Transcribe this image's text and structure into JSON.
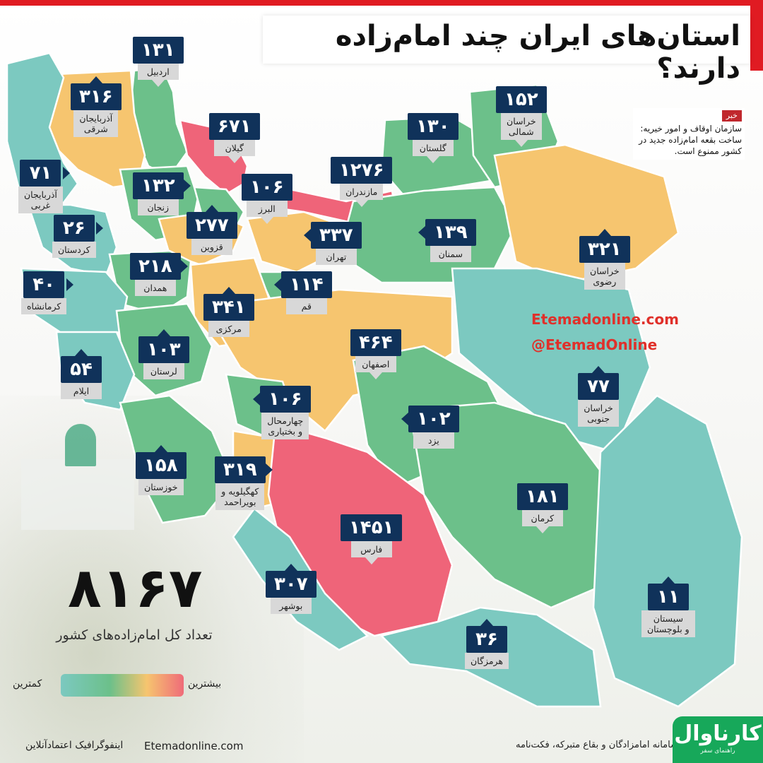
{
  "title": "استان‌های ایران چند امام‌زاده دارند؟",
  "colors": {
    "high": "#ef6479",
    "mid_high": "#f6c56f",
    "mid": "#6cc08a",
    "low": "#7cc9c0",
    "badge": "#10325a",
    "accent": "#e01b22"
  },
  "provinces": [
    {
      "name": "اردبیل",
      "value": "۱۳۱",
      "color": "mid"
    },
    {
      "name": "آذربایجان\nشرقی",
      "value": "۳۱۶",
      "color": "mid_high"
    },
    {
      "name": "گیلان",
      "value": "۶۷۱",
      "color": "high"
    },
    {
      "name": "گلستان",
      "value": "۱۳۰",
      "color": "mid"
    },
    {
      "name": "خراسان\nشمالی",
      "value": "۱۵۲",
      "color": "mid"
    },
    {
      "name": "آذربایجان\nغربی",
      "value": "۷۱",
      "color": "low"
    },
    {
      "name": "زنجان",
      "value": "۱۳۲",
      "color": "mid"
    },
    {
      "name": "البرز",
      "value": "۱۰۶",
      "color": "mid"
    },
    {
      "name": "مازندران",
      "value": "۱۲۷۶",
      "color": "high"
    },
    {
      "name": "کردستان",
      "value": "۲۶",
      "color": "low"
    },
    {
      "name": "قزوین",
      "value": "۲۷۷",
      "color": "mid_high"
    },
    {
      "name": "تهران",
      "value": "۳۳۷",
      "color": "mid_high"
    },
    {
      "name": "سمنان",
      "value": "۱۳۹",
      "color": "mid"
    },
    {
      "name": "خراسان\nرضوی",
      "value": "۳۲۱",
      "color": "mid_high"
    },
    {
      "name": "همدان",
      "value": "۲۱۸",
      "color": "mid"
    },
    {
      "name": "کرمانشاه",
      "value": "۴۰",
      "color": "low"
    },
    {
      "name": "قم",
      "value": "۱۱۴",
      "color": "mid"
    },
    {
      "name": "مرکزی",
      "value": "۳۴۱",
      "color": "mid_high"
    },
    {
      "name": "لرستان",
      "value": "۱۰۳",
      "color": "mid"
    },
    {
      "name": "اصفهان",
      "value": "۴۶۴",
      "color": "mid_high"
    },
    {
      "name": "ایلام",
      "value": "۵۴",
      "color": "low"
    },
    {
      "name": "خراسان\nجنوبی",
      "value": "۷۷",
      "color": "low"
    },
    {
      "name": "چهارمحال\nو بختیاری",
      "value": "۱۰۶",
      "color": "mid"
    },
    {
      "name": "یزد",
      "value": "۱۰۲",
      "color": "mid"
    },
    {
      "name": "خوزستان",
      "value": "۱۵۸",
      "color": "mid"
    },
    {
      "name": "کهگیلویه و\nبویراحمد",
      "value": "۳۱۹",
      "color": "mid_high"
    },
    {
      "name": "کرمان",
      "value": "۱۸۱",
      "color": "mid"
    },
    {
      "name": "فارس",
      "value": "۱۴۵۱",
      "color": "high"
    },
    {
      "name": "بوشهر",
      "value": "۳۰۷",
      "color": "low"
    },
    {
      "name": "سیستان\nو بلوچستان",
      "value": "۱۱",
      "color": "low"
    },
    {
      "name": "هرمزگان",
      "value": "۳۶",
      "color": "low"
    }
  ],
  "news": {
    "tag": "خبر",
    "text": "سازمان اوقاف و امور خیریه: ساخت بقعه امام‌زاده جدید در کشور ممنوع است."
  },
  "watermark": {
    "site": "Etemadonline.com",
    "handle": "@EtemadOnline"
  },
  "total": {
    "value": "۸۱۶۷",
    "label": "تعداد کل امام‌زاده‌های کشور"
  },
  "legend": {
    "low": "کمترین",
    "high": "بیشترین"
  },
  "footer": {
    "credit": "اینفوگرافیک اعتمادآنلاین",
    "site": "Etemadonline.com",
    "source": "منبع: سامانه امامزادگان و بقاع متبرکه، فکت‌نامه"
  },
  "brand": {
    "name": "کارناوال",
    "tagline": "راهنمای سفر"
  }
}
